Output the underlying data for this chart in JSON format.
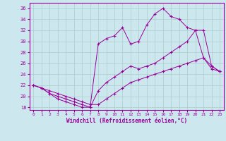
{
  "xlabel": "Windchill (Refroidissement éolien,°C)",
  "bg_color": "#cce8ee",
  "grid_color": "#aacccc",
  "line_color": "#990099",
  "xlim": [
    -0.5,
    23.5
  ],
  "ylim": [
    17.5,
    37.0
  ],
  "xticks": [
    0,
    1,
    2,
    3,
    4,
    5,
    6,
    7,
    8,
    9,
    10,
    11,
    12,
    13,
    14,
    15,
    16,
    17,
    18,
    19,
    20,
    21,
    22,
    23
  ],
  "yticks": [
    18,
    20,
    22,
    24,
    26,
    28,
    30,
    32,
    34,
    36
  ],
  "line1_x": [
    0,
    1,
    2,
    3,
    4,
    5,
    6,
    7,
    8,
    9,
    10,
    11,
    12,
    13,
    14,
    15,
    16,
    17,
    18,
    19,
    20,
    21,
    22,
    23
  ],
  "line1_y": [
    22,
    21.5,
    20.5,
    19.5,
    19.0,
    18.5,
    18.0,
    18.0,
    29.5,
    30.5,
    31.0,
    32.5,
    29.5,
    30.0,
    33.0,
    35.0,
    36.0,
    34.5,
    34.0,
    32.5,
    32.0,
    27.0,
    25.5,
    24.5
  ],
  "line2_x": [
    0,
    1,
    2,
    3,
    4,
    5,
    6,
    7,
    8,
    9,
    10,
    11,
    12,
    13,
    14,
    15,
    16,
    17,
    18,
    19,
    20,
    21,
    22,
    23
  ],
  "line2_y": [
    22,
    21.5,
    20.5,
    20.0,
    19.5,
    19.0,
    18.5,
    18.0,
    21.0,
    22.5,
    23.5,
    24.5,
    25.5,
    25.0,
    25.5,
    26.0,
    27.0,
    28.0,
    29.0,
    30.0,
    32.0,
    32.0,
    25.5,
    24.5
  ],
  "line3_x": [
    0,
    1,
    2,
    3,
    4,
    5,
    6,
    7,
    8,
    9,
    10,
    11,
    12,
    13,
    14,
    15,
    16,
    17,
    18,
    19,
    20,
    21,
    22,
    23
  ],
  "line3_y": [
    22,
    21.5,
    21.0,
    20.5,
    20.0,
    19.5,
    19.0,
    18.5,
    18.5,
    19.5,
    20.5,
    21.5,
    22.5,
    23.0,
    23.5,
    24.0,
    24.5,
    25.0,
    25.5,
    26.0,
    26.5,
    27.0,
    25.0,
    24.5
  ]
}
